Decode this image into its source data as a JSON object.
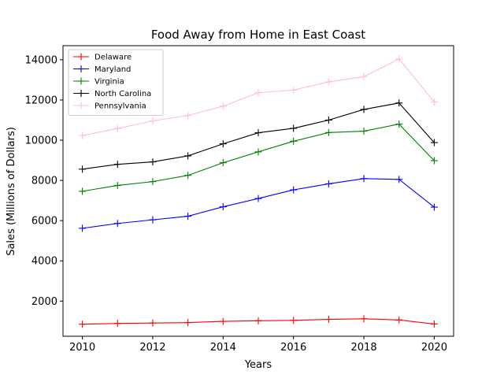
{
  "chart_data": {
    "type": "line",
    "title": "Food Away from Home in East Coast",
    "xlabel": "Years",
    "ylabel": "Sales (Millions of Dollars)",
    "x": [
      2010,
      2011,
      2012,
      2013,
      2014,
      2015,
      2016,
      2017,
      2018,
      2019,
      2020
    ],
    "xlim": [
      2009.45,
      2020.55
    ],
    "ylim": [
      250,
      14700
    ],
    "xticks": [
      2010,
      2012,
      2014,
      2016,
      2018,
      2020
    ],
    "yticks": [
      2000,
      4000,
      6000,
      8000,
      10000,
      12000,
      14000
    ],
    "grid": false,
    "legend_position": "top-left",
    "marker": "plus",
    "series": [
      {
        "name": "Delaware",
        "color": "#ff0000",
        "values": [
          850,
          890,
          910,
          930,
          990,
          1020,
          1040,
          1090,
          1120,
          1060,
          860
        ]
      },
      {
        "name": "Maryland",
        "color": "#0000ff",
        "values": [
          5620,
          5860,
          6040,
          6220,
          6690,
          7100,
          7530,
          7830,
          8090,
          8050,
          6670
        ]
      },
      {
        "name": "Virginia",
        "color": "#008000",
        "values": [
          7460,
          7750,
          7940,
          8250,
          8880,
          9420,
          9950,
          10380,
          10450,
          10800,
          8980
        ]
      },
      {
        "name": "North Carolina",
        "color": "#000000",
        "values": [
          8560,
          8800,
          8920,
          9220,
          9820,
          10370,
          10590,
          11000,
          11530,
          11850,
          9880
        ]
      },
      {
        "name": "Pennsylvania",
        "color": "#ffc0cb",
        "values": [
          10230,
          10580,
          10960,
          11230,
          11690,
          12360,
          12490,
          12900,
          13160,
          14040,
          11900
        ]
      }
    ]
  }
}
